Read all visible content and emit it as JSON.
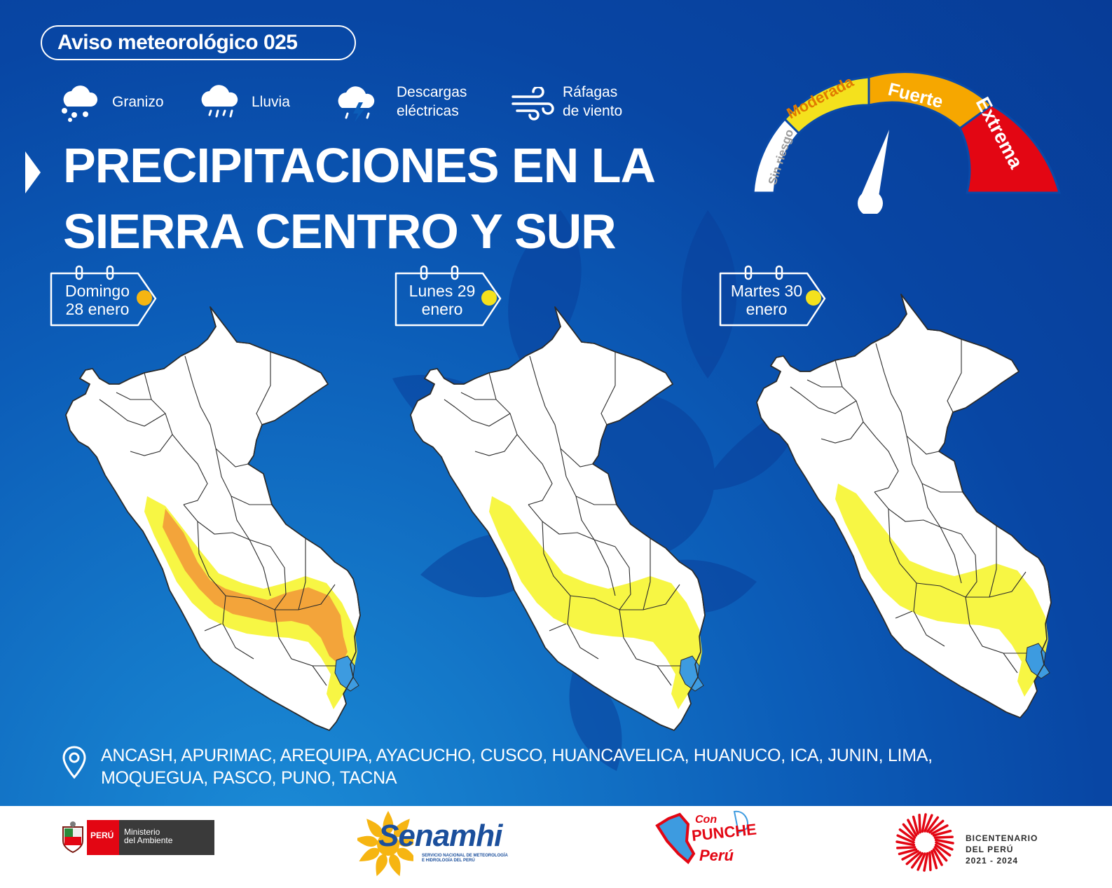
{
  "notice": {
    "label": "Aviso meteorológico 025"
  },
  "legend": [
    {
      "icon": "hail-icon",
      "label": "Granizo"
    },
    {
      "icon": "rain-icon",
      "label": "Lluvia"
    },
    {
      "icon": "lightning-icon",
      "label": "Descargas\neléctricas"
    },
    {
      "icon": "wind-gust-icon",
      "label": "Ráfagas\nde viento"
    }
  ],
  "title": {
    "line1": "PRECIPITACIONES EN LA",
    "line2": "SIERRA CENTRO Y SUR"
  },
  "gauge": {
    "levels": [
      {
        "label": "Sin riesgo",
        "color": "#ffffff"
      },
      {
        "label": "Moderada",
        "color": "#f4e11d"
      },
      {
        "label": "Fuerte",
        "color": "#f6a700"
      },
      {
        "label": "Extrema",
        "color": "#e30613"
      }
    ],
    "needle_level": "Fuerte"
  },
  "days": [
    {
      "label": "Domingo\n28 enero",
      "max_level": "Fuerte",
      "dot_color": "#f6b512"
    },
    {
      "label": "Lunes 29\nenero",
      "max_level": "Moderada",
      "dot_color": "#f4e11d"
    },
    {
      "label": "Martes 30\nenero",
      "max_level": "Moderada",
      "dot_color": "#f4e11d"
    }
  ],
  "colors": {
    "moderate": "#f7f53a",
    "strong": "#f3a43a",
    "lake": "#3d9be0",
    "map_fill": "#ffffff",
    "map_border": "#2b2b2b"
  },
  "regions": {
    "icon": "location-pin-icon",
    "text": "ANCASH, APURIMAC, AREQUIPA, AYACUCHO, CUSCO, HUANCAVELICA, HUANUCO, ICA, JUNIN, LIMA, MOQUEGUA, PASCO, PUNO, TACNA"
  },
  "footer": {
    "peru_label": "PERÚ",
    "ministry_label": "Ministerio\ndel Ambiente",
    "senamhi_name": "Senamhi",
    "senamhi_sub": "SERVICIO NACIONAL DE METEOROLOGÍA\nE HIDROLOGÍA DEL PERÚ",
    "punche_con": "Con",
    "punche_main": "PUNCHE",
    "punche_peru": "Perú",
    "bicentenario": "BICENTENARIO\nDEL PERÚ\n2021 - 2024"
  }
}
